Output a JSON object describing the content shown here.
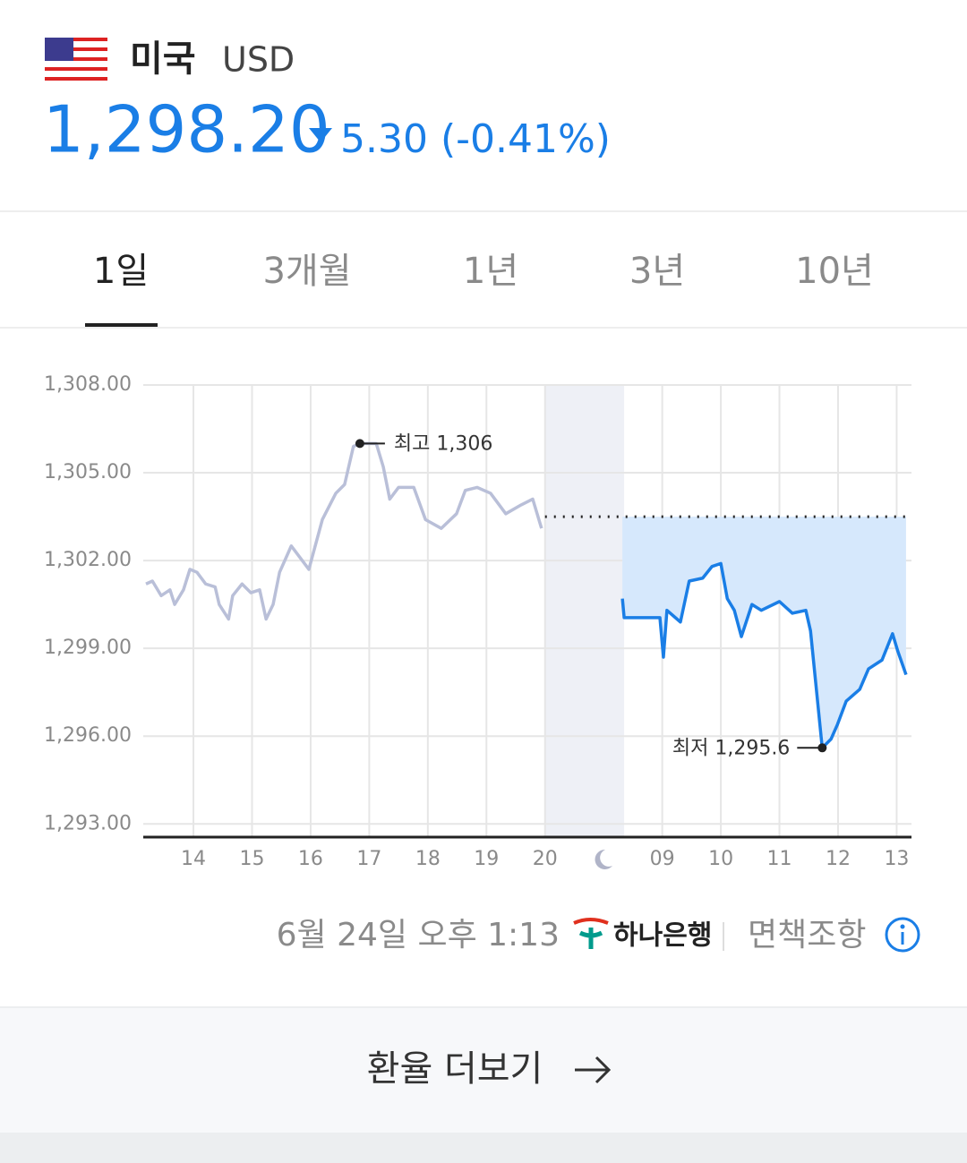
{
  "header": {
    "country": "미국",
    "currency": "USD",
    "rate": "1,298.20",
    "change": "5.30 (-0.41%)"
  },
  "tabs": [
    "1일",
    "3개월",
    "1년",
    "3년",
    "10년"
  ],
  "active_tab": 0,
  "chart_data": {
    "type": "line",
    "xlim": [
      13.144,
      26.253
    ],
    "ylim": [
      1292.55,
      1308
    ],
    "xticks": [
      14,
      15,
      16,
      17,
      18,
      19,
      20,
      {
        "value": 22,
        "label": "09"
      },
      {
        "value": 23,
        "label": "10"
      },
      {
        "value": 24,
        "label": "11"
      },
      {
        "value": 25,
        "label": "12"
      },
      {
        "value": 26,
        "label": "13"
      }
    ],
    "yticks": [
      {
        "value": 1293,
        "label": "1,293.00"
      },
      {
        "value": 1296,
        "label": "1,296.00"
      },
      {
        "value": 1299,
        "label": "1,299.00"
      },
      {
        "value": 1302,
        "label": "1,302.00"
      },
      {
        "value": 1305,
        "label": "1,305.00"
      },
      {
        "value": 1308,
        "label": "1,308.00"
      }
    ],
    "grid": true,
    "reference_line": 1303.5,
    "closed_period": [
      20,
      21.35
    ],
    "series": [
      {
        "color": "#b9bfd8",
        "x": [
          13.19,
          13.3,
          13.45,
          13.6,
          13.68,
          13.83,
          13.94,
          14.06,
          14.21,
          14.37,
          14.44,
          14.6,
          14.67,
          14.83,
          14.98,
          15.13,
          15.24,
          15.36,
          15.47,
          15.67,
          15.97,
          16.2,
          16.43,
          16.58,
          16.73,
          16.84,
          17.12,
          17.24,
          17.35,
          17.5,
          17.76,
          17.96,
          18.23,
          18.49,
          18.64,
          18.84,
          19.07,
          19.33,
          19.59,
          19.79,
          19.94
        ],
        "values": [
          1301.2,
          1301.3,
          1300.8,
          1301.0,
          1300.5,
          1301.0,
          1301.7,
          1301.6,
          1301.2,
          1301.1,
          1300.5,
          1300.0,
          1300.8,
          1301.2,
          1300.9,
          1301.0,
          1300.0,
          1300.5,
          1301.6,
          1302.5,
          1301.7,
          1303.4,
          1304.3,
          1304.6,
          1305.9,
          1306,
          1306.0,
          1305.2,
          1304.1,
          1304.5,
          1304.5,
          1303.4,
          1303.1,
          1303.6,
          1304.4,
          1304.5,
          1304.3,
          1303.6,
          1303.9,
          1304.1,
          1303.1
        ]
      },
      {
        "color": "#1a7ee6",
        "x": [
          21.32,
          21.35,
          21.96,
          22.02,
          22.08,
          22.31,
          22.46,
          22.69,
          22.85,
          23.0,
          23.11,
          23.23,
          23.35,
          23.53,
          23.69,
          24.0,
          24.22,
          24.45,
          24.53,
          24.63,
          24.73,
          24.88,
          24.99,
          25.14,
          25.37,
          25.52,
          25.75,
          25.93,
          26.02,
          26.16
        ],
        "values": [
          1300.7,
          1300.05,
          1300.05,
          1298.7,
          1300.3,
          1299.9,
          1301.3,
          1301.4,
          1301.8,
          1301.9,
          1300.7,
          1300.3,
          1299.4,
          1300.5,
          1300.3,
          1300.6,
          1300.2,
          1300.3,
          1299.6,
          1297.6,
          1295.6,
          1295.9,
          1296.4,
          1297.2,
          1297.6,
          1298.3,
          1298.6,
          1299.5,
          1298.9,
          1298.1
        ]
      }
    ],
    "annotations": [
      {
        "x": 16.84,
        "y": 1306,
        "label": "최고 1,306",
        "side": "right"
      },
      {
        "x": 24.73,
        "y": 1295.6,
        "label": "최저 1,295.6",
        "side": "left"
      }
    ]
  },
  "footer": {
    "timestamp": "6월 24일 오후 1:13",
    "bank": "하나은행",
    "disclaimer": "면책조항"
  },
  "button": {
    "label": "환율 더보기"
  }
}
